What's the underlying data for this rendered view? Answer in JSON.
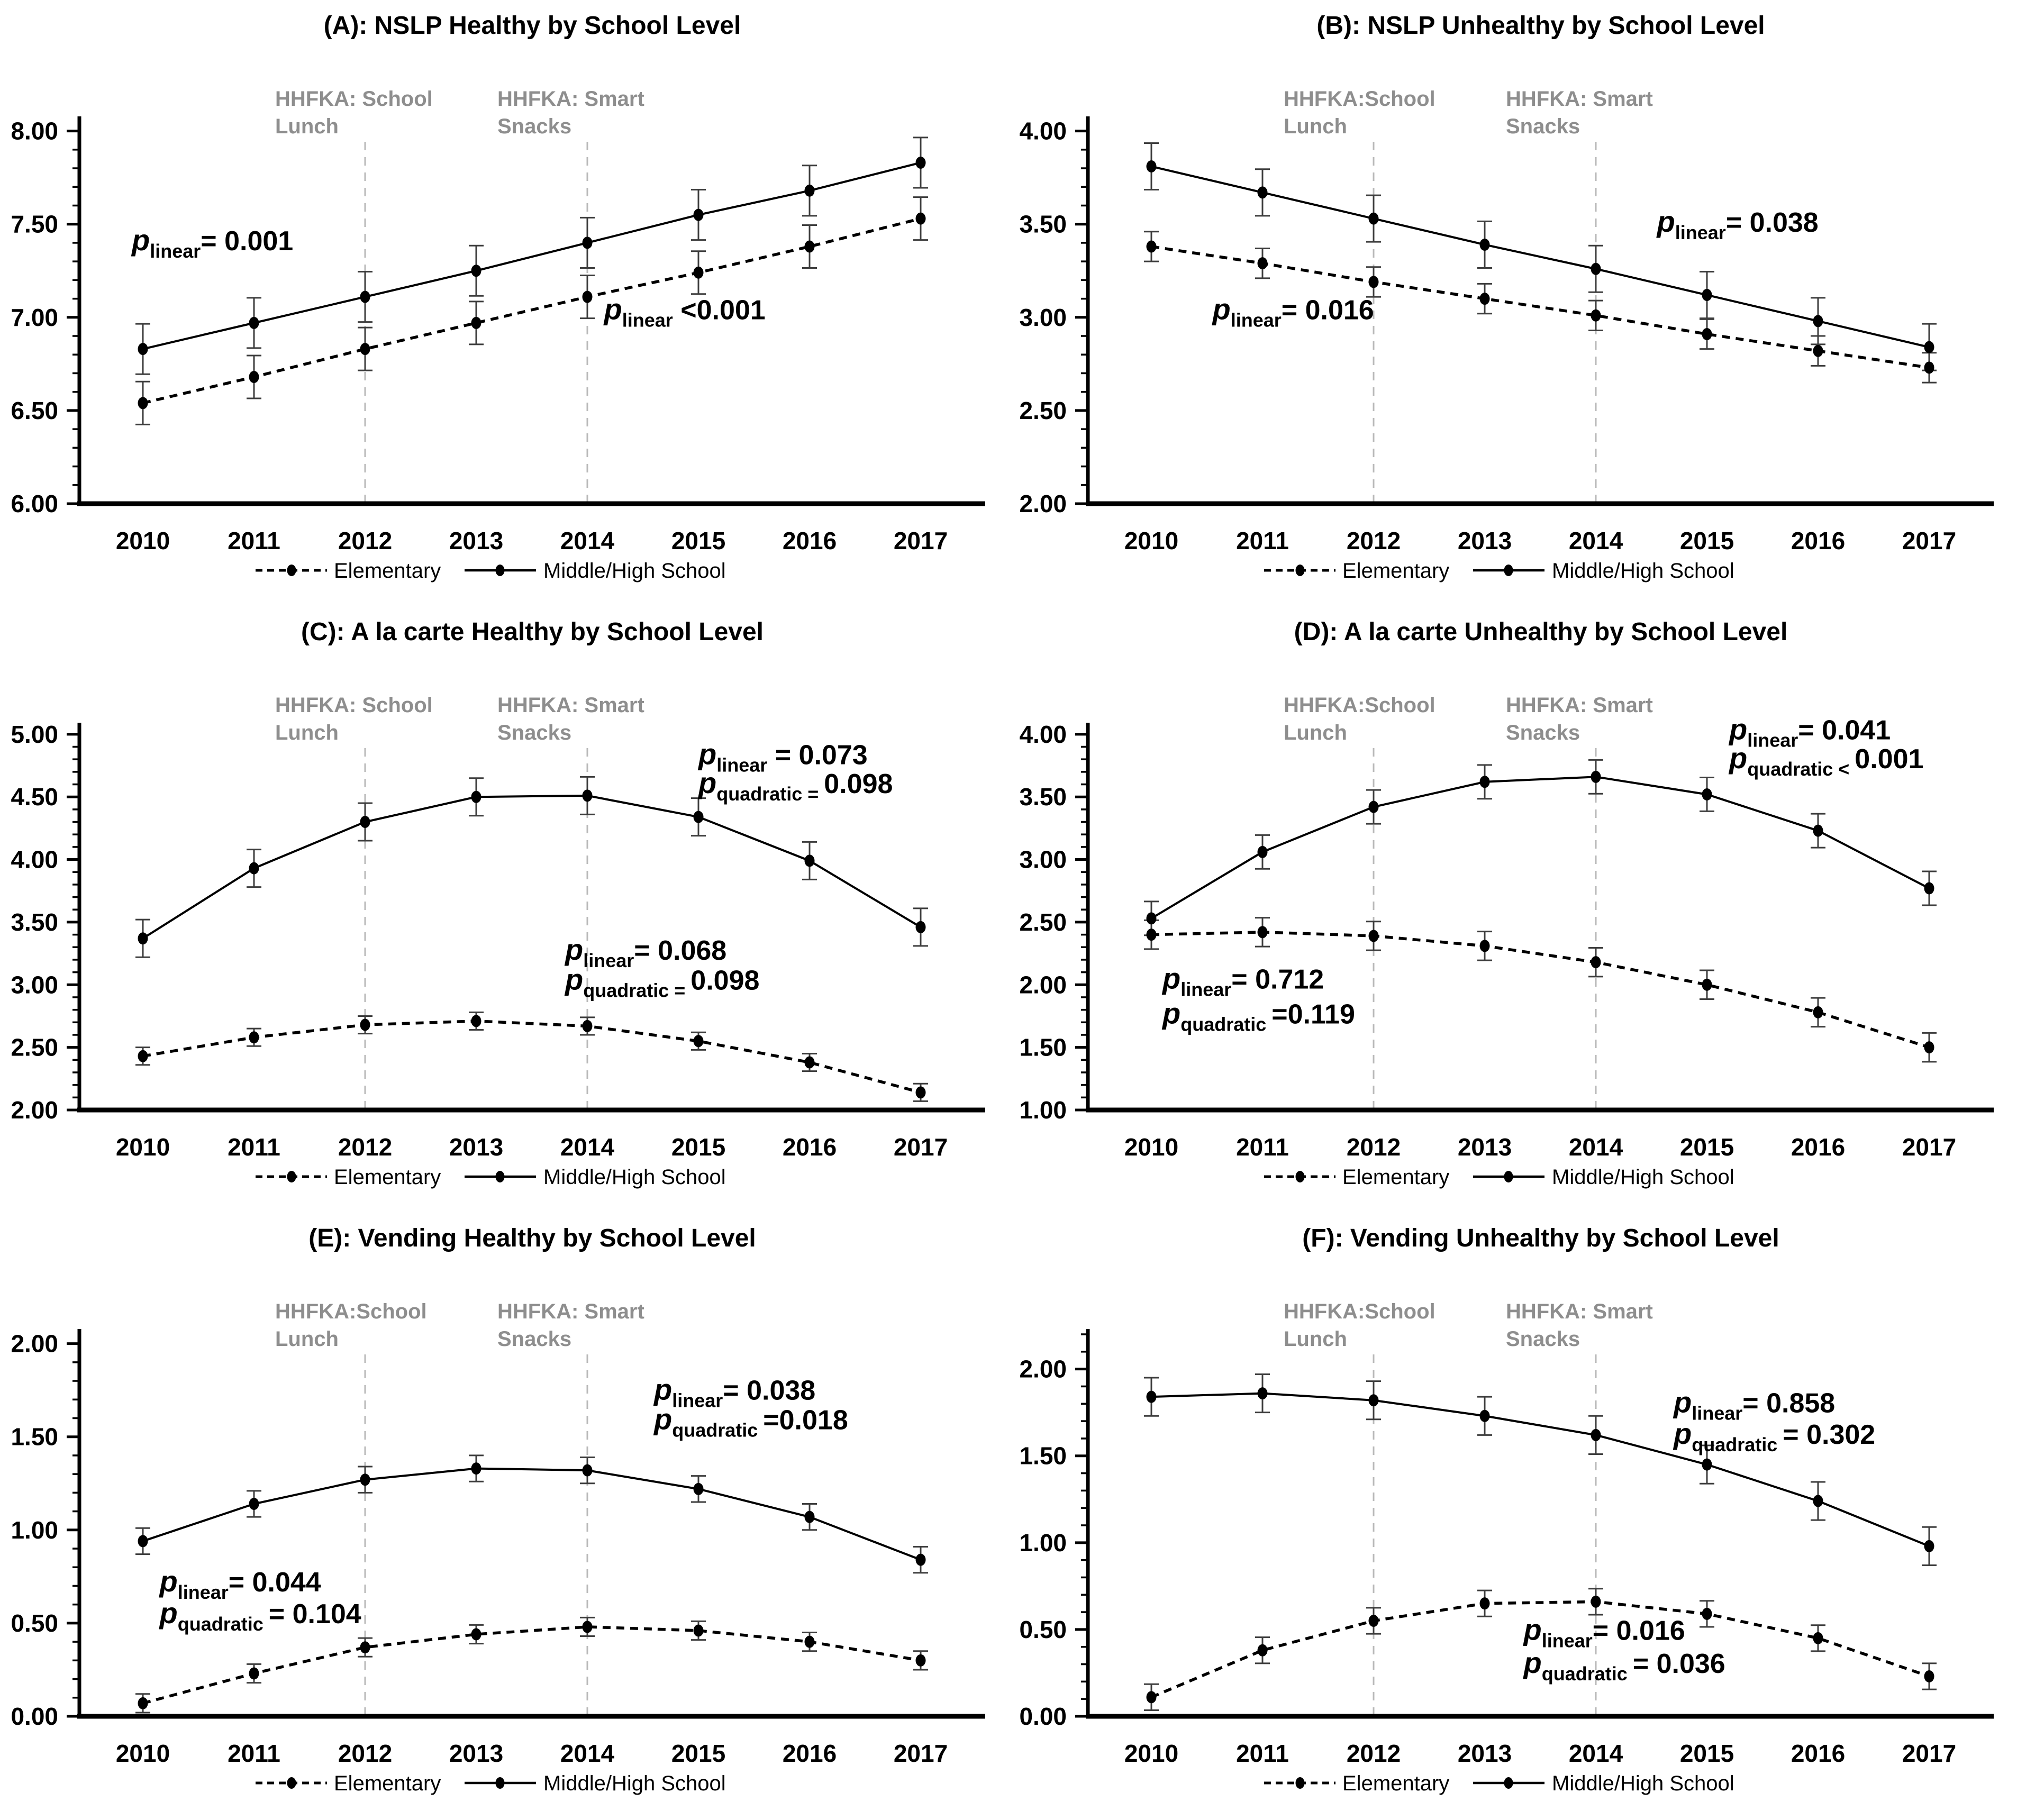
{
  "figure": {
    "background": "#ffffff",
    "line_color": "#000000",
    "error_bar_color": "#3d3d3d",
    "ref_line_color": "#b9b9b9",
    "ref_label_color": "#8e8e8e",
    "legend": {
      "elementary": "Elementary",
      "middle_high": "Middle/High School"
    }
  },
  "chart_data": [
    {
      "id": "a",
      "type": "line",
      "title": "(A): NSLP Healthy by School Level",
      "x_labels": [
        "2010",
        "2011",
        "2012",
        "2013",
        "2014",
        "2015",
        "2016",
        "2017"
      ],
      "ylim": [
        6.0,
        8.0
      ],
      "axis_top": 8.05,
      "ytick_step": 0.5,
      "ytick_labels": [
        "6.00",
        "6.50",
        "7.00",
        "7.50",
        "8.00"
      ],
      "minor_tick_step": 0.1,
      "series": [
        {
          "name": "Elementary",
          "style": "dashed",
          "values": [
            6.54,
            6.68,
            6.83,
            6.97,
            7.11,
            7.24,
            7.38,
            7.53
          ],
          "error": 0.115
        },
        {
          "name": "Middle/High School",
          "style": "solid",
          "values": [
            6.83,
            6.97,
            7.11,
            7.25,
            7.4,
            7.55,
            7.68,
            7.83
          ],
          "error": 0.135
        }
      ],
      "ref_lines": [
        {
          "year": 2012,
          "lines": [
            "HHFKA:  School",
            "Lunch"
          ]
        },
        {
          "year": 2014,
          "lines": [
            "HHFKA:  Smart",
            "Snacks"
          ]
        }
      ],
      "annotations": [
        {
          "p_sub": "linear",
          "text": "= 0.001",
          "x": 2009.9,
          "y": 7.36
        },
        {
          "p_sub": "linear",
          "text": " <0.001",
          "x": 2014.15,
          "y": 6.99
        }
      ]
    },
    {
      "id": "b",
      "type": "line",
      "title": "(B): NSLP Unhealthy by School Level",
      "x_labels": [
        "2010",
        "2011",
        "2012",
        "2013",
        "2014",
        "2015",
        "2016",
        "2017"
      ],
      "ylim": [
        2.0,
        4.0
      ],
      "axis_top": 4.05,
      "ytick_step": 0.5,
      "ytick_labels": [
        "2.00",
        "2.50",
        "3.00",
        "3.50",
        "4.00"
      ],
      "minor_tick_step": 0.1,
      "series": [
        {
          "name": "Elementary",
          "style": "dashed",
          "values": [
            3.38,
            3.29,
            3.19,
            3.1,
            3.01,
            2.91,
            2.82,
            2.73
          ],
          "error": 0.08
        },
        {
          "name": "Middle/High School",
          "style": "solid",
          "values": [
            3.81,
            3.67,
            3.53,
            3.39,
            3.26,
            3.12,
            2.98,
            2.84
          ],
          "error": 0.125
        }
      ],
      "ref_lines": [
        {
          "year": 2012,
          "lines": [
            "HHFKA:School",
            "Lunch"
          ]
        },
        {
          "year": 2014,
          "lines": [
            "HHFKA:  Smart",
            "Snacks"
          ]
        }
      ],
      "annotations": [
        {
          "p_sub": "linear",
          "text": "= 0.038",
          "x": 2014.55,
          "y": 3.46
        },
        {
          "p_sub": "linear",
          "text": "= 0.016",
          "x": 2010.55,
          "y": 2.99
        }
      ]
    },
    {
      "id": "c",
      "type": "line",
      "title": "(C): A la carte Healthy by School Level",
      "x_labels": [
        "2010",
        "2011",
        "2012",
        "2013",
        "2014",
        "2015",
        "2016",
        "2017"
      ],
      "ylim": [
        2.0,
        5.0
      ],
      "axis_top": 5.05,
      "ytick_step": 0.5,
      "ytick_labels": [
        "2.00",
        "2.50",
        "3.00",
        "3.50",
        "4.00",
        "4.50",
        "5.00"
      ],
      "minor_tick_step": 0.1,
      "series": [
        {
          "name": "Elementary",
          "style": "dashed",
          "values": [
            2.43,
            2.58,
            2.68,
            2.71,
            2.67,
            2.55,
            2.38,
            2.14
          ],
          "error": 0.07
        },
        {
          "name": "Middle/High School",
          "style": "solid",
          "values": [
            3.37,
            3.93,
            4.3,
            4.5,
            4.51,
            4.34,
            3.99,
            3.46
          ],
          "error": 0.15
        }
      ],
      "ref_lines": [
        {
          "year": 2012,
          "lines": [
            "HHFKA:  School",
            "Lunch"
          ]
        },
        {
          "year": 2014,
          "lines": [
            "HHFKA:  Smart",
            "Snacks"
          ]
        }
      ],
      "annotations": [
        {
          "p_sub": "linear",
          "text": " = 0.073",
          "x": 2015.0,
          "y": 4.76
        },
        {
          "p_sub": "quadratic = ",
          "text": "0.098",
          "x": 2015.0,
          "y": 4.53
        },
        {
          "p_sub": "linear",
          "text": "= 0.068",
          "x": 2013.8,
          "y": 3.2
        },
        {
          "p_sub": "quadratic = ",
          "text": "0.098",
          "x": 2013.8,
          "y": 2.96
        }
      ]
    },
    {
      "id": "d",
      "type": "line",
      "title": "(D): A la carte Unhealthy by School Level",
      "x_labels": [
        "2010",
        "2011",
        "2012",
        "2013",
        "2014",
        "2015",
        "2016",
        "2017"
      ],
      "ylim": [
        1.0,
        4.0
      ],
      "axis_top": 4.05,
      "ytick_step": 0.5,
      "ytick_labels": [
        "1.00",
        "1.50",
        "2.00",
        "2.50",
        "3.00",
        "3.50",
        "4.00"
      ],
      "minor_tick_step": 0.1,
      "series": [
        {
          "name": "Elementary",
          "style": "dashed",
          "values": [
            2.4,
            2.42,
            2.39,
            2.31,
            2.18,
            2.0,
            1.78,
            1.5
          ],
          "error": 0.115
        },
        {
          "name": "Middle/High School",
          "style": "solid",
          "values": [
            2.53,
            3.06,
            3.42,
            3.62,
            3.66,
            3.52,
            3.23,
            2.77
          ],
          "error": 0.135
        }
      ],
      "ref_lines": [
        {
          "year": 2012,
          "lines": [
            "HHFKA:School",
            "Lunch"
          ]
        },
        {
          "year": 2014,
          "lines": [
            "HHFKA:  Smart",
            "Snacks"
          ]
        }
      ],
      "annotations": [
        {
          "p_sub": "linear",
          "text": "= 0.041",
          "x": 2015.2,
          "y": 3.96
        },
        {
          "p_sub": "quadratic < ",
          "text": "0.001",
          "x": 2015.2,
          "y": 3.73
        },
        {
          "p_sub": "linear",
          "text": "=  0.712",
          "x": 2010.1,
          "y": 1.97
        },
        {
          "p_sub": "quadratic ",
          "text": "=0.119",
          "x": 2010.1,
          "y": 1.69
        }
      ]
    },
    {
      "id": "e",
      "type": "line",
      "title": "(E): Vending Healthy by School Level",
      "x_labels": [
        "2010",
        "2011",
        "2012",
        "2013",
        "2014",
        "2015",
        "2016",
        "2017"
      ],
      "ylim": [
        0.0,
        2.0
      ],
      "axis_top": 2.05,
      "ytick_step": 0.5,
      "ytick_labels": [
        "0.00",
        "0.50",
        "1.00",
        "1.50",
        "2.00"
      ],
      "minor_tick_step": 0.1,
      "series": [
        {
          "name": "Elementary",
          "style": "dashed",
          "values": [
            0.07,
            0.23,
            0.37,
            0.44,
            0.48,
            0.46,
            0.4,
            0.3
          ],
          "error": 0.05
        },
        {
          "name": "Middle/High School",
          "style": "solid",
          "values": [
            0.94,
            1.14,
            1.27,
            1.33,
            1.32,
            1.22,
            1.07,
            0.84
          ],
          "error": 0.07
        }
      ],
      "ref_lines": [
        {
          "year": 2012,
          "lines": [
            "HHFKA:School",
            "Lunch"
          ]
        },
        {
          "year": 2014,
          "lines": [
            "HHFKA:  Smart",
            "Snacks"
          ]
        }
      ],
      "annotations": [
        {
          "p_sub": "linear",
          "text": "= 0.038",
          "x": 2014.6,
          "y": 1.7
        },
        {
          "p_sub": "quadratic ",
          "text": "=0.018",
          "x": 2014.6,
          "y": 1.54
        },
        {
          "p_sub": "linear",
          "text": "= 0.044",
          "x": 2010.15,
          "y": 0.67
        },
        {
          "p_sub": "quadratic ",
          "text": "= 0.104",
          "x": 2010.15,
          "y": 0.5
        }
      ]
    },
    {
      "id": "f",
      "type": "line",
      "title": "(F): Vending Unhealthy by School Level",
      "x_labels": [
        "2010",
        "2011",
        "2012",
        "2013",
        "2014",
        "2015",
        "2016",
        "2017"
      ],
      "ylim": [
        0.0,
        2.0
      ],
      "axis_top": 2.2,
      "ytick_step": 0.5,
      "ytick_labels": [
        "0.00",
        "0.50",
        "1.00",
        "1.50",
        "2.00"
      ],
      "minor_tick_step": 0.1,
      "series": [
        {
          "name": "Elementary",
          "style": "dashed",
          "values": [
            0.11,
            0.38,
            0.55,
            0.65,
            0.66,
            0.59,
            0.45,
            0.23
          ],
          "error": 0.075
        },
        {
          "name": "Middle/High School",
          "style": "solid",
          "values": [
            1.84,
            1.86,
            1.82,
            1.73,
            1.62,
            1.45,
            1.24,
            0.98
          ],
          "error": 0.11
        }
      ],
      "ref_lines": [
        {
          "year": 2012,
          "lines": [
            "HHFKA:School",
            "Lunch"
          ]
        },
        {
          "year": 2014,
          "lines": [
            "HHFKA:  Smart",
            "Snacks"
          ]
        }
      ],
      "annotations": [
        {
          "p_sub": "linear",
          "text": "= 0.858",
          "x": 2014.7,
          "y": 1.75
        },
        {
          "p_sub": "quadratic ",
          "text": " = 0.302",
          "x": 2014.7,
          "y": 1.57
        },
        {
          "p_sub": "linear",
          "text": "= 0.016",
          "x": 2013.35,
          "y": 0.44
        },
        {
          "p_sub": "quadratic ",
          "text": " = 0.036",
          "x": 2013.35,
          "y": 0.25
        }
      ]
    }
  ]
}
